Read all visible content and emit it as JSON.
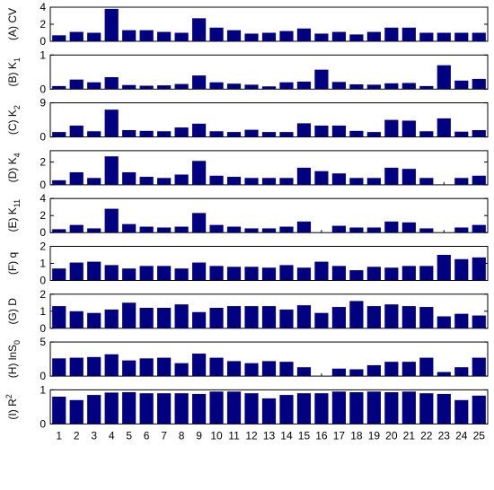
{
  "chart_data": {
    "type": "bar",
    "layout": "stacked-panels",
    "bar_color": "#000080",
    "categories": [
      "1",
      "2",
      "3",
      "4",
      "5",
      "6",
      "7",
      "8",
      "9",
      "10",
      "11",
      "12",
      "13",
      "14",
      "15",
      "16",
      "17",
      "18",
      "19",
      "20",
      "21",
      "22",
      "23",
      "24",
      "25"
    ],
    "panels": [
      {
        "id": "cv",
        "ylabel": "(A) CV",
        "ylim": [
          0,
          4
        ],
        "yticks": [
          0,
          2,
          4
        ],
        "values": [
          0.7,
          1.1,
          1.0,
          3.8,
          1.3,
          1.3,
          1.1,
          1.0,
          2.7,
          1.6,
          1.3,
          0.9,
          1.0,
          1.2,
          1.5,
          0.9,
          1.1,
          0.8,
          1.1,
          1.6,
          1.6,
          1.0,
          1.0,
          1.0,
          1.0
        ]
      },
      {
        "id": "k1",
        "ylabel": "(B) K",
        "ylabel_sub": "1",
        "ylim": [
          0,
          1
        ],
        "yticks": [
          0,
          1
        ],
        "values": [
          0.09,
          0.28,
          0.2,
          0.35,
          0.12,
          0.1,
          0.11,
          0.15,
          0.4,
          0.2,
          0.16,
          0.13,
          0.08,
          0.2,
          0.22,
          0.57,
          0.21,
          0.14,
          0.13,
          0.17,
          0.18,
          0.09,
          0.7,
          0.25,
          0.3
        ]
      },
      {
        "id": "k2",
        "ylabel": "(C) K",
        "ylabel_sub": "2",
        "ylim": [
          0,
          9
        ],
        "yticks": [
          0,
          9
        ],
        "values": [
          1.3,
          3.0,
          1.5,
          7.2,
          1.8,
          1.6,
          1.5,
          2.5,
          3.5,
          1.5,
          1.3,
          1.9,
          1.3,
          1.3,
          3.6,
          3.0,
          3.0,
          1.6,
          1.3,
          4.5,
          4.3,
          1.5,
          4.9,
          1.4,
          1.8
        ]
      },
      {
        "id": "k4",
        "ylabel": "(D) K",
        "ylabel_sub": "4",
        "ylim": [
          0,
          3
        ],
        "yticks": [
          0,
          2
        ],
        "values": [
          0.4,
          1.1,
          0.6,
          2.5,
          1.1,
          0.7,
          0.6,
          0.9,
          2.1,
          0.8,
          0.7,
          0.6,
          0.6,
          0.6,
          1.5,
          1.2,
          1.0,
          0.6,
          0.6,
          1.5,
          1.4,
          0.6,
          0.0,
          0.6,
          0.8
        ]
      },
      {
        "id": "k11",
        "ylabel": "(E) K",
        "ylabel_sub": "11",
        "ylim": [
          0,
          4
        ],
        "yticks": [
          0,
          2,
          4
        ],
        "values": [
          0.4,
          0.9,
          0.5,
          2.8,
          1.0,
          0.7,
          0.6,
          0.7,
          2.3,
          0.9,
          0.7,
          0.5,
          0.5,
          0.7,
          1.3,
          0.0,
          0.8,
          0.6,
          0.6,
          1.3,
          1.2,
          0.5,
          0.0,
          0.6,
          0.9
        ]
      },
      {
        "id": "q",
        "ylabel": "(F) q",
        "ylim": [
          0,
          2
        ],
        "yticks": [
          0,
          1,
          2
        ],
        "values": [
          0.7,
          1.05,
          1.1,
          0.9,
          0.7,
          0.85,
          0.85,
          0.7,
          1.05,
          0.85,
          0.8,
          0.8,
          0.75,
          0.9,
          0.75,
          1.1,
          0.85,
          0.6,
          0.8,
          0.75,
          0.85,
          0.85,
          1.5,
          1.25,
          1.35
        ]
      },
      {
        "id": "d",
        "ylabel": "(G) D",
        "ylim": [
          0,
          2
        ],
        "yticks": [
          0,
          1,
          2
        ],
        "values": [
          1.3,
          1.0,
          0.9,
          1.1,
          1.5,
          1.2,
          1.2,
          1.4,
          0.95,
          1.2,
          1.3,
          1.3,
          1.3,
          1.1,
          1.35,
          0.9,
          1.25,
          1.6,
          1.3,
          1.4,
          1.3,
          1.25,
          0.7,
          0.85,
          0.75
        ]
      },
      {
        "id": "lns0",
        "ylabel": "(H) lnS",
        "ylabel_sub": "0",
        "ylim": [
          0,
          5
        ],
        "yticks": [
          0,
          5
        ],
        "values": [
          2.6,
          2.7,
          2.8,
          3.2,
          2.3,
          2.6,
          2.7,
          1.9,
          3.3,
          2.7,
          2.2,
          1.9,
          2.2,
          2.1,
          1.3,
          0.0,
          1.1,
          1.0,
          1.6,
          2.1,
          2.1,
          2.7,
          0.6,
          1.3,
          2.7
        ]
      },
      {
        "id": "r2",
        "ylabel": "(I) R",
        "ylabel_sup": "2",
        "ylim": [
          0,
          1
        ],
        "yticks": [
          0,
          1
        ],
        "values": [
          0.8,
          0.7,
          0.85,
          0.92,
          0.93,
          0.9,
          0.9,
          0.9,
          0.88,
          0.95,
          0.95,
          0.9,
          0.75,
          0.85,
          0.9,
          0.9,
          0.95,
          0.93,
          0.95,
          0.93,
          0.95,
          0.9,
          0.88,
          0.7,
          0.83
        ]
      }
    ]
  }
}
